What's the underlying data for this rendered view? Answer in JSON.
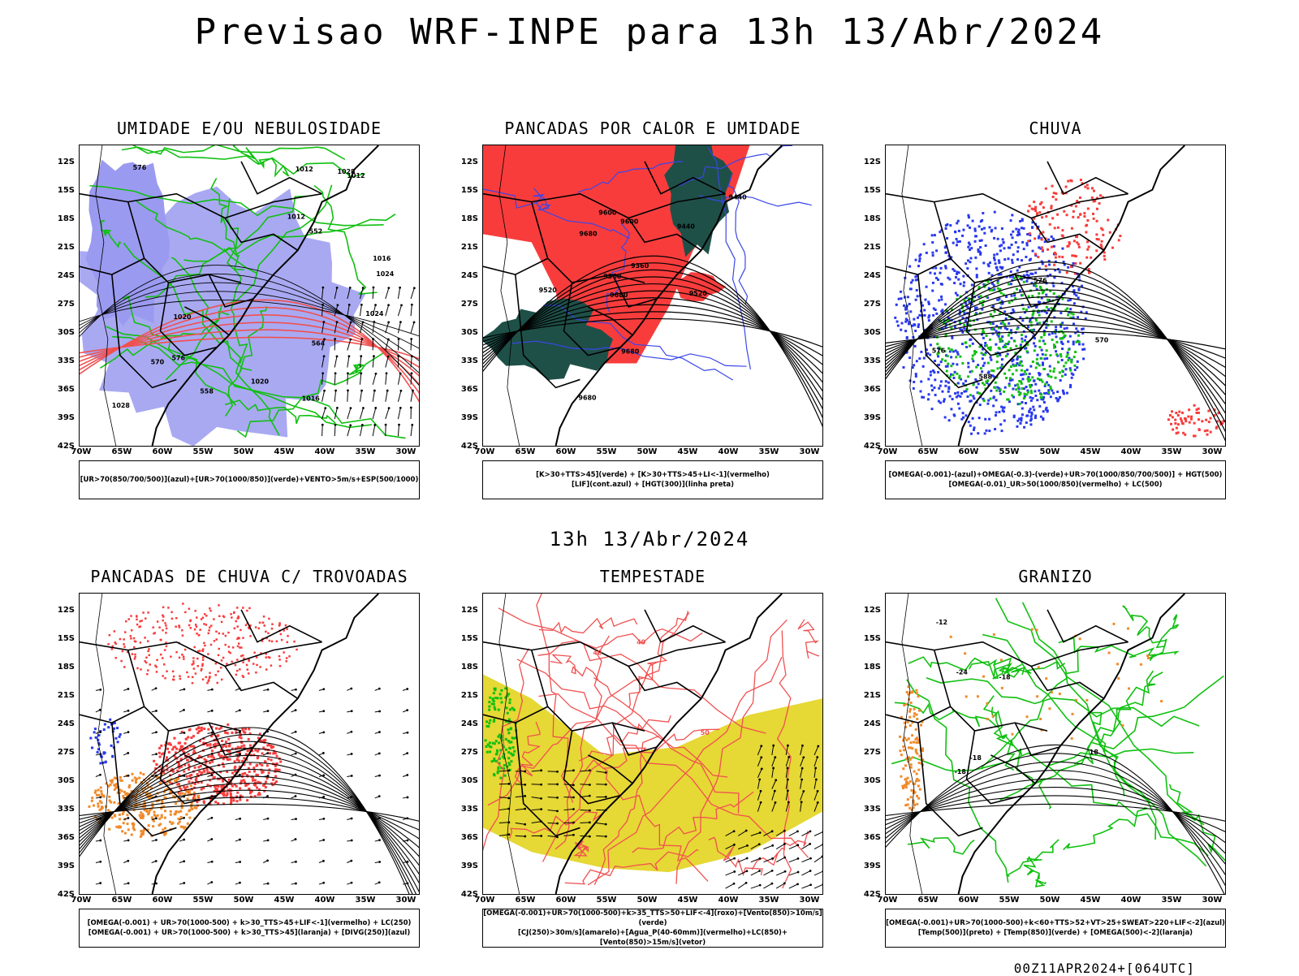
{
  "header": {
    "main_title": "Previsao WRF-INPE  para 13h 13/Abr/2024",
    "mid_title": "13h 13/Abr/2024",
    "footer": "00Z11APR2024+[064UTC]"
  },
  "axes": {
    "lat_labels": [
      "12S",
      "15S",
      "18S",
      "21S",
      "24S",
      "27S",
      "30S",
      "33S",
      "36S",
      "39S",
      "42S"
    ],
    "lon_labels": [
      "70W",
      "65W",
      "60W",
      "55W",
      "50W",
      "45W",
      "40W",
      "35W",
      "30W"
    ]
  },
  "colors": {
    "blue_fill": "#9a9af0",
    "red_fill": "#f83c3c",
    "dark_green_fill": "#1e5048",
    "yellow_fill": "#e6d835",
    "green_line": "#10c010",
    "red_line": "#f05050",
    "orange_dots": "#f08a2a",
    "blue_dots": "#2838ee"
  },
  "panels": [
    {
      "id": "umidade",
      "title": "UMIDADE E/OU NEBULOSIDADE",
      "legend": [
        "[UR>70(850/700/500)](azul)+[UR>70(1000/850)](verde)+VENTO>5m/s+ESP(500/1000)"
      ],
      "labels": [
        "1012",
        "1012",
        "1012",
        "1016",
        "1016",
        "1020",
        "1020",
        "1024",
        "1024",
        "1028",
        "1028",
        "576",
        "576",
        "570",
        "564",
        "558",
        "552"
      ]
    },
    {
      "id": "pancadas-calor",
      "title": "PANCADAS POR CALOR E UMIDADE",
      "legend": [
        "[K>30+TTS>45](verde) + [K>30+TTS>45+LI<-1](vermelho)",
        "[LIF](cont.azul) + [HGT(300)](linha preta)"
      ],
      "labels": [
        "9680",
        "9680",
        "9680",
        "9680",
        "9600",
        "9600",
        "9520",
        "9520",
        "9440",
        "9440",
        "9360",
        "9360"
      ]
    },
    {
      "id": "chuva",
      "title": "CHUVA",
      "legend": [
        "[OMEGA(-0.001)-(azul)+OMEGA(-0.3)-(verde)+UR>70(1000/850/700/500)] + HGT(500)",
        "[OMEGA(-0.01)_UR>50(1000/850)(vermelho) + LC(500)"
      ],
      "labels": [
        "588",
        "576",
        "576",
        "570"
      ]
    },
    {
      "id": "pancadas-trovoadas",
      "title": "PANCADAS DE CHUVA C/ TROVOADAS",
      "legend": [
        "[OMEGA(-0.001) + UR>70(1000-500) + k>30_TTS>45+LIF<-1](vermelho) + LC(250)",
        "[OMEGA(-0.001) + UR>70(1000-500) + k>30_TTS>45](laranja) + [DIVG(250)](azul)"
      ],
      "labels": []
    },
    {
      "id": "tempestade",
      "title": "TEMPESTADE",
      "legend": [
        "[OMEGA(-0.001)+UR>70(1000-500)+k>35_TTS>50+LIF<-4](roxo)+[Vento(850)>10m/s](verde)",
        "[CJ(250)>30m/s](amarelo)+[Agua_P(40-60mm)](vermelho)+LC(850)+[Vento(850)>15m/s](vetor)"
      ],
      "labels": [
        "40",
        "40",
        "50"
      ]
    },
    {
      "id": "granizo",
      "title": "GRANIZO",
      "legend": [
        "[OMEGA(-0.001)+UR>70(1000-500)+k<60+TTS>52+VT>25+SWEAT>220+LIF<-2](azul)",
        "[Temp(500)](preto) + [Temp(850)](verde) + [OMEGA(500)<-2](laranja)"
      ],
      "labels": [
        "-12",
        "-18",
        "-18",
        "-18",
        "-24",
        "18"
      ]
    }
  ]
}
